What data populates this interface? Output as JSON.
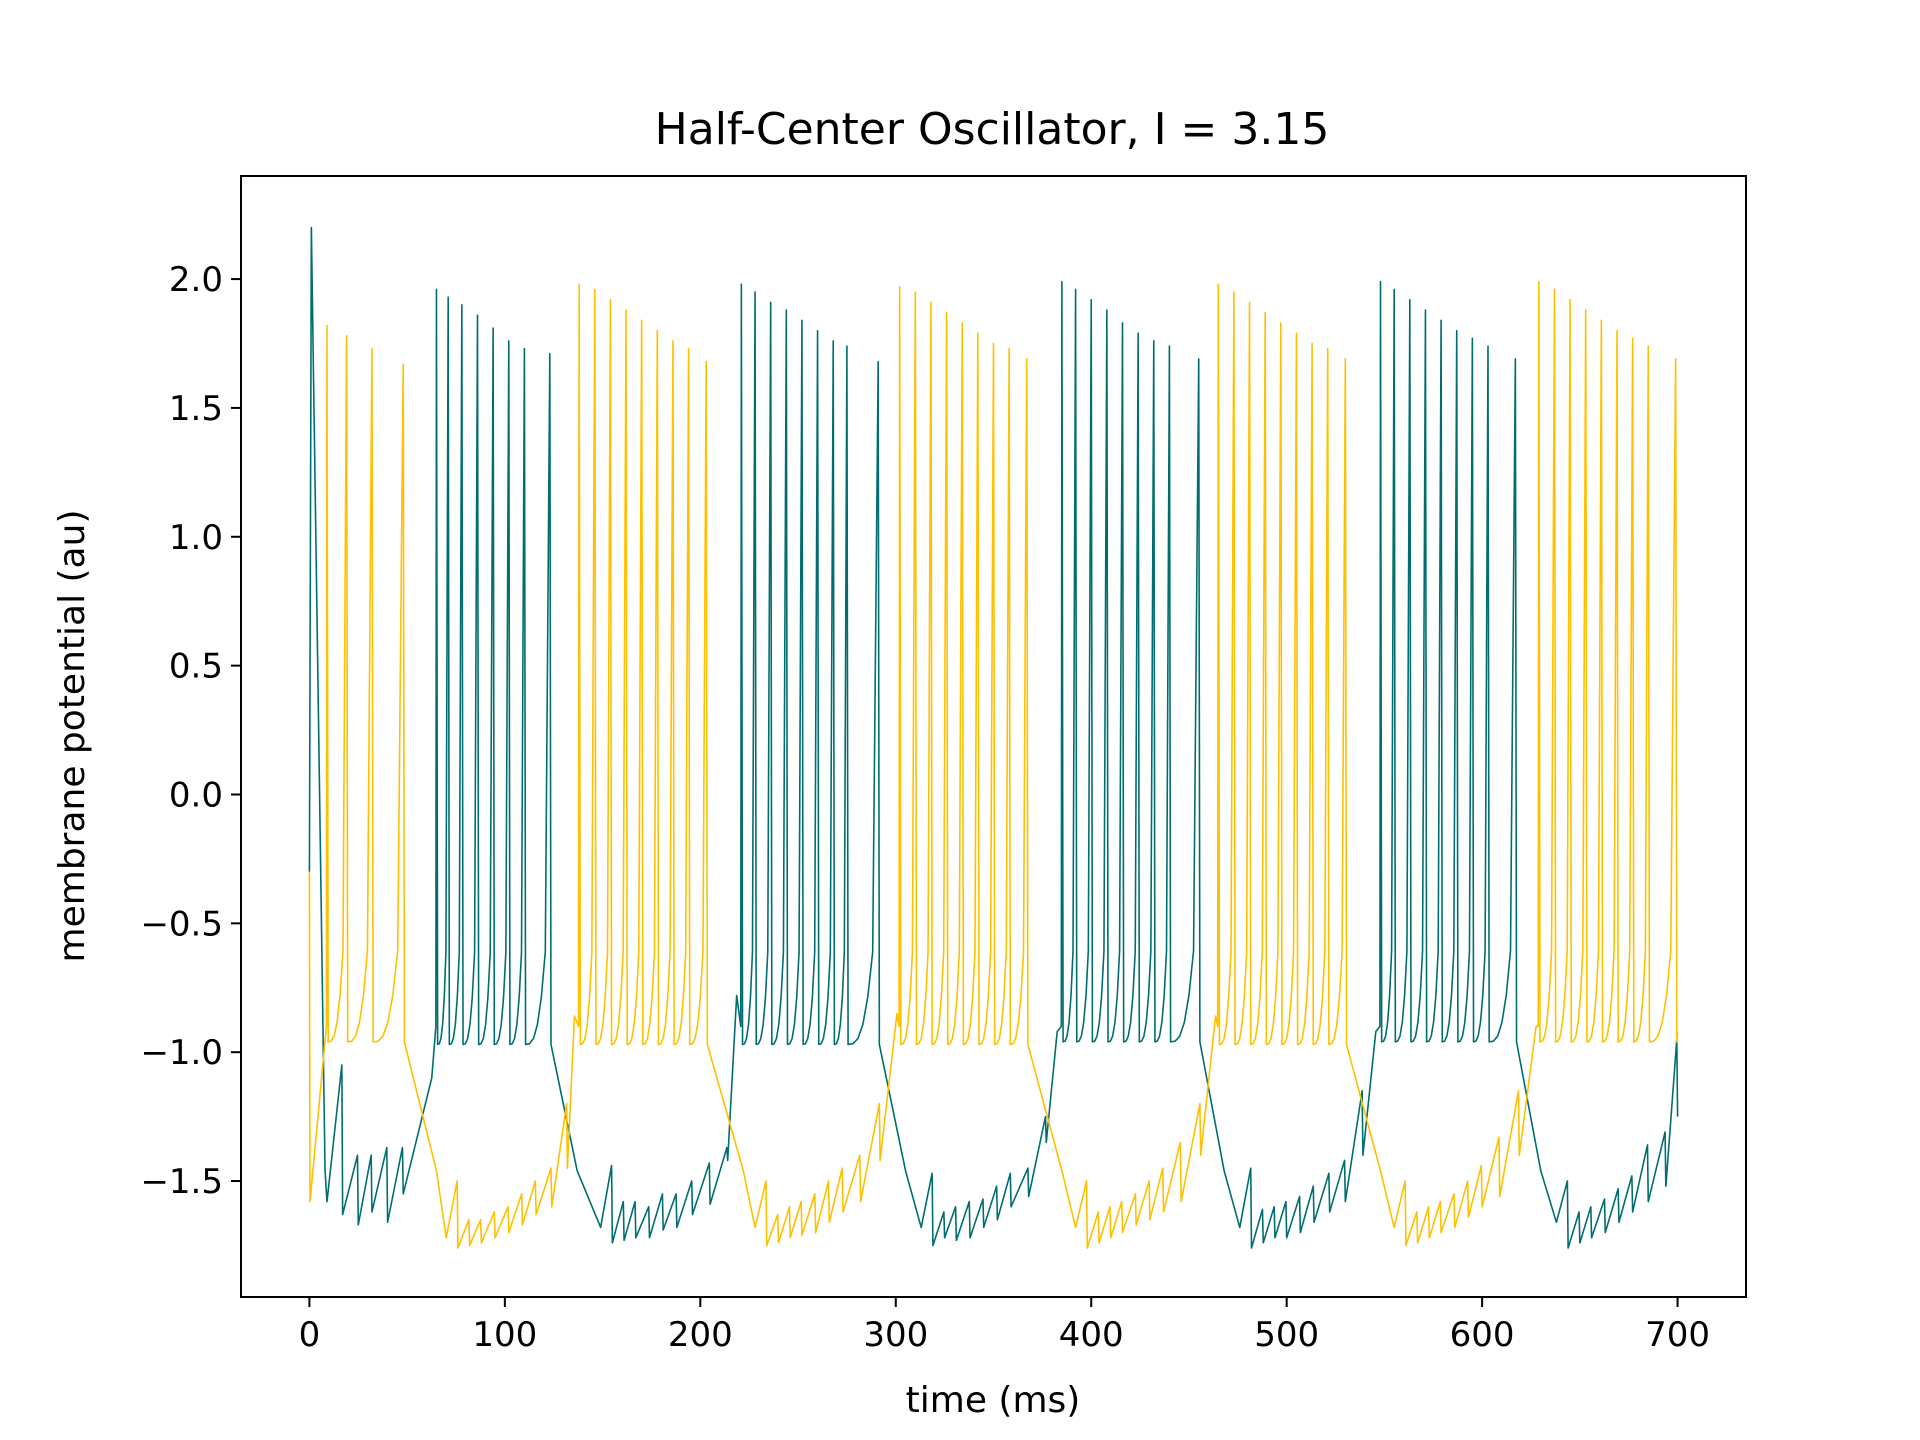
{
  "chart_data": {
    "type": "line",
    "title": "Half-Center Oscillator, I = 3.15",
    "xlabel": "time (ms)",
    "ylabel": "membrane potential (au)",
    "xlim": [
      -35,
      735
    ],
    "ylim": [
      -1.95,
      2.4
    ],
    "xticks": [
      0,
      100,
      200,
      300,
      400,
      500,
      600,
      700
    ],
    "yticks": [
      -1.5,
      -1.0,
      -0.5,
      0.0,
      0.5,
      1.0,
      1.5,
      2.0
    ],
    "xtick_labels": [
      "0",
      "100",
      "200",
      "300",
      "400",
      "500",
      "600",
      "700"
    ],
    "ytick_labels": [
      "−1.5",
      "−1.0",
      "−0.5",
      "0.0",
      "0.5",
      "1.0",
      "1.5",
      "2.0"
    ],
    "grid": false,
    "legend": null,
    "series": [
      {
        "color": "#006e70",
        "start": {
          "t": 0,
          "v": -0.3
        },
        "first_spike": {
          "t": 1,
          "v": 2.2
        },
        "bursts": [
          {
            "spike_times": [
              65,
              71,
              78,
              86,
              94,
              102,
              110,
              123
            ],
            "spike_peaks": [
              1.96,
              1.93,
              1.9,
              1.86,
              1.81,
              1.76,
              1.73,
              1.71
            ],
            "trough": -0.97
          },
          {
            "spike_times": [
              221,
              228,
              236,
              244,
              252,
              260,
              268,
              275,
              291
            ],
            "spike_peaks": [
              1.98,
              1.95,
              1.91,
              1.88,
              1.84,
              1.8,
              1.76,
              1.74,
              1.68
            ],
            "trough": -0.97
          },
          {
            "spike_times": [
              385,
              392,
              400,
              408,
              416,
              424,
              432,
              440,
              455
            ],
            "spike_peaks": [
              1.99,
              1.96,
              1.92,
              1.88,
              1.83,
              1.79,
              1.76,
              1.74,
              1.69
            ],
            "trough": -0.96
          },
          {
            "spike_times": [
              548,
              555,
              563,
              571,
              579,
              587,
              595,
              603,
              617
            ],
            "spike_peaks": [
              1.99,
              1.96,
              1.92,
              1.88,
              1.84,
              1.8,
              1.77,
              1.74,
              1.69
            ],
            "trough": -0.96
          }
        ],
        "silent_phases": [
          {
            "from": 8,
            "to": 63,
            "dip_times": [
              9,
              17,
              25,
              32,
              40,
              48
            ],
            "dip_values": [
              -1.58,
              -1.63,
              -1.67,
              -1.62,
              -1.66,
              -1.55
            ],
            "peak_values": [
              -1.05,
              -1.4,
              -1.4,
              -1.37,
              -1.37,
              -1.1
            ]
          },
          {
            "from": 137,
            "to": 219,
            "dip_times": [
              149,
              155,
              161,
              167,
              174,
              181,
              188,
              196,
              205,
              214
            ],
            "dip_values": [
              -1.68,
              -1.74,
              -1.73,
              -1.72,
              -1.72,
              -1.69,
              -1.68,
              -1.63,
              -1.59,
              -1.42
            ],
            "peak_values": [
              -1.44,
              -1.58,
              -1.58,
              -1.6,
              -1.55,
              -1.55,
              -1.5,
              -1.43,
              -1.37,
              -0.78
            ]
          },
          {
            "from": 305,
            "to": 383,
            "dip_times": [
              313,
              319,
              325,
              331,
              338,
              345,
              352,
              359,
              368,
              377
            ],
            "dip_values": [
              -1.68,
              -1.75,
              -1.72,
              -1.73,
              -1.72,
              -1.68,
              -1.65,
              -1.6,
              -1.56,
              -1.35
            ],
            "peak_values": [
              -1.47,
              -1.62,
              -1.6,
              -1.58,
              -1.57,
              -1.52,
              -1.47,
              -1.45,
              -1.25,
              -0.92
            ]
          },
          {
            "from": 468,
            "to": 546,
            "dip_times": [
              476,
              482,
              488,
              494,
              500,
              507,
              514,
              522,
              530,
              539
            ],
            "dip_values": [
              -1.68,
              -1.76,
              -1.74,
              -1.72,
              -1.72,
              -1.7,
              -1.66,
              -1.62,
              -1.58,
              -1.4
            ],
            "peak_values": [
              -1.45,
              -1.61,
              -1.6,
              -1.58,
              -1.56,
              -1.52,
              -1.47,
              -1.42,
              -1.15,
              -0.92
            ]
          },
          {
            "from": 630,
            "to": 700,
            "dip_times": [
              638,
              644,
              650,
              656,
              663,
              670,
              677,
              685,
              694
            ],
            "dip_values": [
              -1.66,
              -1.76,
              -1.74,
              -1.72,
              -1.7,
              -1.66,
              -1.62,
              -1.58,
              -1.52
            ],
            "peak_values": [
              -1.5,
              -1.62,
              -1.6,
              -1.57,
              -1.53,
              -1.48,
              -1.36,
              -1.31,
              -0.95
            ]
          }
        ],
        "end": {
          "t": 700,
          "v": -1.25
        }
      },
      {
        "color": "#ffc000",
        "start": {
          "t": 0,
          "v": -0.3
        },
        "initial_drop": {
          "t": 0,
          "v": -1.58
        },
        "bursts": [
          {
            "spike_times": [
              9,
              19,
              32,
              48
            ],
            "spike_peaks": [
              1.82,
              1.78,
              1.73,
              1.67
            ],
            "trough": -0.96
          },
          {
            "spike_times": [
              138,
              146,
              154,
              162,
              170,
              178,
              186,
              194,
              203
            ],
            "spike_peaks": [
              1.98,
              1.96,
              1.92,
              1.88,
              1.84,
              1.8,
              1.76,
              1.73,
              1.68
            ],
            "trough": -0.97
          },
          {
            "spike_times": [
              302,
              310,
              318,
              326,
              334,
              342,
              350,
              358,
              367
            ],
            "spike_peaks": [
              1.97,
              1.95,
              1.91,
              1.87,
              1.83,
              1.79,
              1.75,
              1.73,
              1.69
            ],
            "trough": -0.97
          },
          {
            "spike_times": [
              465,
              473,
              481,
              489,
              497,
              505,
              513,
              521,
              530
            ],
            "spike_peaks": [
              1.98,
              1.95,
              1.91,
              1.87,
              1.83,
              1.79,
              1.75,
              1.73,
              1.69
            ],
            "trough": -0.97
          },
          {
            "spike_times": [
              629,
              637,
              645,
              653,
              661,
              669,
              677,
              685,
              699
            ],
            "spike_peaks": [
              1.99,
              1.96,
              1.92,
              1.88,
              1.84,
              1.8,
              1.77,
              1.74,
              1.69
            ],
            "trough": -0.96
          }
        ],
        "silent_phases": [
          {
            "from": 65,
            "to": 136,
            "dip_times": [
              70,
              76,
              82,
              88,
              95,
              102,
              109,
              116,
              124,
              132
            ],
            "dip_values": [
              -1.72,
              -1.76,
              -1.75,
              -1.74,
              -1.72,
              -1.7,
              -1.67,
              -1.63,
              -1.6,
              -1.45
            ],
            "peak_values": [
              -1.5,
              -1.65,
              -1.65,
              -1.62,
              -1.6,
              -1.55,
              -1.5,
              -1.45,
              -1.2,
              -0.86
            ]
          },
          {
            "from": 222,
            "to": 301,
            "dip_times": [
              228,
              234,
              240,
              246,
              252,
              259,
              266,
              273,
              282,
              292
            ],
            "dip_values": [
              -1.68,
              -1.75,
              -1.74,
              -1.72,
              -1.71,
              -1.7,
              -1.66,
              -1.62,
              -1.58,
              -1.42
            ],
            "peak_values": [
              -1.5,
              -1.63,
              -1.6,
              -1.58,
              -1.55,
              -1.5,
              -1.45,
              -1.4,
              -1.2,
              -0.85
            ]
          },
          {
            "from": 385,
            "to": 464,
            "dip_times": [
              392,
              398,
              404,
              410,
              416,
              423,
              430,
              437,
              446,
              456
            ],
            "dip_values": [
              -1.68,
              -1.76,
              -1.74,
              -1.72,
              -1.7,
              -1.67,
              -1.65,
              -1.62,
              -1.58,
              -1.4
            ],
            "peak_values": [
              -1.5,
              -1.62,
              -1.6,
              -1.58,
              -1.55,
              -1.5,
              -1.45,
              -1.35,
              -1.2,
              -0.86
            ]
          },
          {
            "from": 548,
            "to": 628,
            "dip_times": [
              555,
              561,
              567,
              573,
              579,
              586,
              593,
              600,
              609,
              619
            ],
            "dip_values": [
              -1.68,
              -1.75,
              -1.74,
              -1.72,
              -1.7,
              -1.68,
              -1.64,
              -1.6,
              -1.56,
              -1.4
            ],
            "peak_values": [
              -1.5,
              -1.62,
              -1.6,
              -1.58,
              -1.55,
              -1.5,
              -1.44,
              -1.33,
              -1.15,
              -0.9
            ]
          }
        ],
        "end": {
          "t": 700,
          "v": -0.92
        }
      }
    ]
  }
}
